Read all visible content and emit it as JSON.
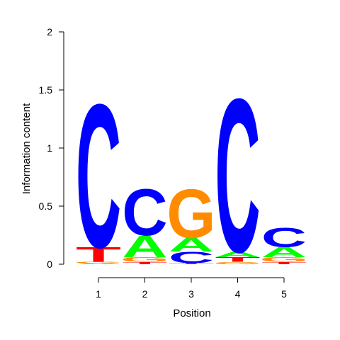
{
  "chart_data": {
    "type": "sequence-logo",
    "xlabel": "Position",
    "ylabel": "Information content",
    "ylim": [
      0,
      2
    ],
    "y_ticks": [
      {
        "value": 0,
        "label": "0"
      },
      {
        "value": 0.5,
        "label": "0.5"
      },
      {
        "value": 1,
        "label": "1"
      },
      {
        "value": 1.5,
        "label": "1.5"
      },
      {
        "value": 2,
        "label": "2"
      }
    ],
    "positions": [
      {
        "label": "1",
        "stack": [
          {
            "letter": "A",
            "height": 0.01
          },
          {
            "letter": "G",
            "height": 0.01
          },
          {
            "letter": "T",
            "height": 0.13
          },
          {
            "letter": "C",
            "height": 1.27
          }
        ]
      },
      {
        "label": "2",
        "stack": [
          {
            "letter": "T",
            "height": 0.02
          },
          {
            "letter": "G",
            "height": 0.04
          },
          {
            "letter": "A",
            "height": 0.19
          },
          {
            "letter": "C",
            "height": 0.41
          }
        ]
      },
      {
        "label": "3",
        "stack": [
          {
            "letter": "T",
            "height": 0.01
          },
          {
            "letter": "C",
            "height": 0.1
          },
          {
            "letter": "A",
            "height": 0.12
          },
          {
            "letter": "G",
            "height": 0.43
          }
        ]
      },
      {
        "label": "4",
        "stack": [
          {
            "letter": "G",
            "height": 0.02
          },
          {
            "letter": "T",
            "height": 0.04
          },
          {
            "letter": "A",
            "height": 0.05
          },
          {
            "letter": "C",
            "height": 1.36
          }
        ]
      },
      {
        "label": "5",
        "stack": [
          {
            "letter": "T",
            "height": 0.02
          },
          {
            "letter": "G",
            "height": 0.04
          },
          {
            "letter": "A",
            "height": 0.09
          },
          {
            "letter": "C",
            "height": 0.17
          }
        ]
      }
    ],
    "letter_colors": {
      "A": "#00ff00",
      "C": "#0000ff",
      "G": "#ff8c00",
      "T": "#ff0000"
    },
    "grid": false,
    "legend": "none"
  }
}
